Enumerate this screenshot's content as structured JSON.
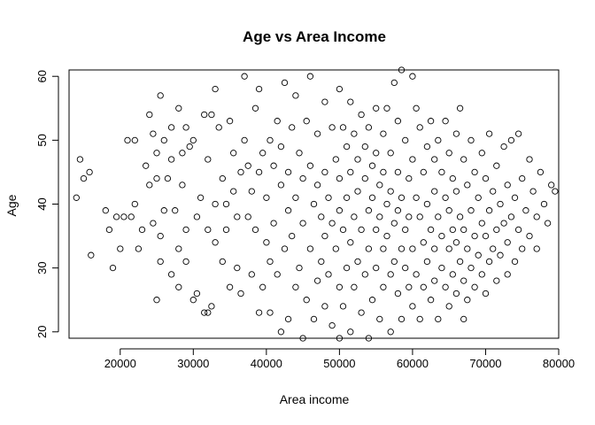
{
  "chart_data": {
    "type": "scatter",
    "title": "Age vs Area Income",
    "xlabel": "Area income",
    "ylabel": "Age",
    "xlim": [
      13000,
      80000
    ],
    "ylim": [
      19,
      61
    ],
    "x_ticks": [
      20000,
      30000,
      40000,
      50000,
      60000,
      70000,
      80000
    ],
    "x_tick_labels": [
      "20000",
      "30000",
      "40000",
      "50000",
      "60000",
      "70000",
      "80000"
    ],
    "y_ticks": [
      20,
      30,
      40,
      50,
      60
    ],
    "y_tick_labels": [
      "20",
      "30",
      "40",
      "50",
      "60"
    ],
    "grid": false,
    "marker": "open-circle",
    "colors": {
      "marker": "#000000",
      "background": "#ffffff"
    },
    "series": [
      {
        "points": [
          [
            14000,
            41
          ],
          [
            14500,
            47
          ],
          [
            15000,
            44
          ],
          [
            15800,
            45
          ],
          [
            16000,
            32
          ],
          [
            18000,
            39
          ],
          [
            18500,
            36
          ],
          [
            19000,
            30
          ],
          [
            19500,
            38
          ],
          [
            20000,
            33
          ],
          [
            20500,
            38
          ],
          [
            21000,
            50
          ],
          [
            21500,
            38
          ],
          [
            22000,
            40
          ],
          [
            22000,
            50
          ],
          [
            22500,
            33
          ],
          [
            23000,
            36
          ],
          [
            23500,
            46
          ],
          [
            24000,
            43
          ],
          [
            24000,
            54
          ],
          [
            24500,
            51
          ],
          [
            24500,
            37
          ],
          [
            25000,
            48
          ],
          [
            25000,
            44
          ],
          [
            25500,
            35
          ],
          [
            25500,
            57
          ],
          [
            25500,
            31
          ],
          [
            25000,
            25
          ],
          [
            26000,
            39
          ],
          [
            26000,
            50
          ],
          [
            26500,
            44
          ],
          [
            27000,
            52
          ],
          [
            27000,
            47
          ],
          [
            27000,
            29
          ],
          [
            27500,
            39
          ],
          [
            28000,
            55
          ],
          [
            28000,
            33
          ],
          [
            28000,
            27
          ],
          [
            28500,
            48
          ],
          [
            28500,
            43
          ],
          [
            29000,
            52
          ],
          [
            29000,
            36
          ],
          [
            29000,
            31
          ],
          [
            29500,
            49
          ],
          [
            30000,
            50
          ],
          [
            30000,
            25
          ],
          [
            30500,
            38
          ],
          [
            30500,
            26
          ],
          [
            31000,
            41
          ],
          [
            31500,
            54
          ],
          [
            31500,
            23
          ],
          [
            32000,
            47
          ],
          [
            32000,
            36
          ],
          [
            32000,
            23
          ],
          [
            32500,
            54
          ],
          [
            32500,
            24
          ],
          [
            33000,
            58
          ],
          [
            33000,
            40
          ],
          [
            33000,
            34
          ],
          [
            33500,
            52
          ],
          [
            34000,
            44
          ],
          [
            34000,
            31
          ],
          [
            34500,
            40
          ],
          [
            34500,
            36
          ],
          [
            35000,
            53
          ],
          [
            35000,
            27
          ],
          [
            35500,
            48
          ],
          [
            35500,
            42
          ],
          [
            36000,
            38
          ],
          [
            36000,
            30
          ],
          [
            36500,
            45
          ],
          [
            36500,
            26
          ],
          [
            37000,
            60
          ],
          [
            37000,
            50
          ],
          [
            37500,
            46
          ],
          [
            37500,
            38
          ],
          [
            38000,
            42
          ],
          [
            38000,
            29
          ],
          [
            38500,
            55
          ],
          [
            38500,
            36
          ],
          [
            39000,
            58
          ],
          [
            39000,
            45
          ],
          [
            39000,
            23
          ],
          [
            39500,
            48
          ],
          [
            39500,
            27
          ],
          [
            40000,
            34
          ],
          [
            40000,
            41
          ],
          [
            40500,
            50
          ],
          [
            40500,
            31
          ],
          [
            40500,
            23
          ],
          [
            41000,
            46
          ],
          [
            41000,
            37
          ],
          [
            41500,
            53
          ],
          [
            41500,
            29
          ],
          [
            42000,
            20
          ],
          [
            42000,
            43
          ],
          [
            42000,
            49
          ],
          [
            42500,
            59
          ],
          [
            42500,
            33
          ],
          [
            43000,
            39
          ],
          [
            43000,
            45
          ],
          [
            43000,
            22
          ],
          [
            43500,
            52
          ],
          [
            43500,
            35
          ],
          [
            44000,
            57
          ],
          [
            44000,
            41
          ],
          [
            44000,
            27
          ],
          [
            44500,
            48
          ],
          [
            44500,
            30
          ],
          [
            45000,
            44
          ],
          [
            45000,
            37
          ],
          [
            45000,
            19
          ],
          [
            45500,
            53
          ],
          [
            45500,
            25
          ],
          [
            46000,
            60
          ],
          [
            46000,
            46
          ],
          [
            46000,
            33
          ],
          [
            46500,
            40
          ],
          [
            46500,
            22
          ],
          [
            47000,
            51
          ],
          [
            47000,
            43
          ],
          [
            47000,
            28
          ],
          [
            47500,
            38
          ],
          [
            47500,
            31
          ],
          [
            48000,
            56
          ],
          [
            48000,
            45
          ],
          [
            48000,
            35
          ],
          [
            48000,
            24
          ],
          [
            48500,
            41
          ],
          [
            48500,
            29
          ],
          [
            49000,
            52
          ],
          [
            49000,
            37
          ],
          [
            49000,
            21
          ],
          [
            49500,
            47
          ],
          [
            49500,
            33
          ],
          [
            50000,
            58
          ],
          [
            50000,
            44
          ],
          [
            50000,
            39
          ],
          [
            50000,
            27
          ],
          [
            50000,
            19
          ],
          [
            50500,
            52
          ],
          [
            50500,
            36
          ],
          [
            50500,
            24
          ],
          [
            51000,
            49
          ],
          [
            51000,
            41
          ],
          [
            51000,
            30
          ],
          [
            51500,
            56
          ],
          [
            51500,
            45
          ],
          [
            51500,
            34
          ],
          [
            51500,
            20
          ],
          [
            52000,
            51
          ],
          [
            52000,
            38
          ],
          [
            52000,
            27
          ],
          [
            52500,
            47
          ],
          [
            52500,
            42
          ],
          [
            52500,
            31
          ],
          [
            53000,
            54
          ],
          [
            53000,
            36
          ],
          [
            53000,
            23
          ],
          [
            53500,
            49
          ],
          [
            53500,
            44
          ],
          [
            53500,
            29
          ],
          [
            54000,
            52
          ],
          [
            54000,
            39
          ],
          [
            54000,
            33
          ],
          [
            54000,
            19
          ],
          [
            54500,
            46
          ],
          [
            54500,
            41
          ],
          [
            54500,
            25
          ],
          [
            55000,
            55
          ],
          [
            55000,
            48
          ],
          [
            55000,
            36
          ],
          [
            55000,
            30
          ],
          [
            55500,
            43
          ],
          [
            55500,
            38
          ],
          [
            55500,
            22
          ],
          [
            56000,
            51
          ],
          [
            56000,
            45
          ],
          [
            56000,
            33
          ],
          [
            56000,
            27
          ],
          [
            56500,
            55
          ],
          [
            56500,
            40
          ],
          [
            56500,
            35
          ],
          [
            57000,
            48
          ],
          [
            57000,
            42
          ],
          [
            57000,
            29
          ],
          [
            57000,
            20
          ],
          [
            57500,
            59
          ],
          [
            57500,
            37
          ],
          [
            57500,
            31
          ],
          [
            58000,
            53
          ],
          [
            58000,
            45
          ],
          [
            58000,
            39
          ],
          [
            58000,
            26
          ],
          [
            58500,
            61
          ],
          [
            58500,
            41
          ],
          [
            58500,
            33
          ],
          [
            58500,
            22
          ],
          [
            59000,
            50
          ],
          [
            59000,
            36
          ],
          [
            59000,
            30
          ],
          [
            59500,
            44
          ],
          [
            59500,
            38
          ],
          [
            59500,
            27
          ],
          [
            60000,
            60
          ],
          [
            60000,
            47
          ],
          [
            60000,
            33
          ],
          [
            60000,
            24
          ],
          [
            60500,
            55
          ],
          [
            60500,
            41
          ],
          [
            60500,
            29
          ],
          [
            61000,
            52
          ],
          [
            61000,
            38
          ],
          [
            61000,
            22
          ],
          [
            61500,
            45
          ],
          [
            61500,
            34
          ],
          [
            61500,
            27
          ],
          [
            62000,
            49
          ],
          [
            62000,
            40
          ],
          [
            62000,
            31
          ],
          [
            62500,
            53
          ],
          [
            62500,
            36
          ],
          [
            62500,
            25
          ],
          [
            63000,
            47
          ],
          [
            63000,
            42
          ],
          [
            63000,
            33
          ],
          [
            63000,
            28
          ],
          [
            63500,
            50
          ],
          [
            63500,
            38
          ],
          [
            63500,
            22
          ],
          [
            64000,
            45
          ],
          [
            64000,
            35
          ],
          [
            64000,
            30
          ],
          [
            64500,
            53
          ],
          [
            64500,
            41
          ],
          [
            64500,
            27
          ],
          [
            65000,
            48
          ],
          [
            65000,
            39
          ],
          [
            65000,
            33
          ],
          [
            65000,
            24
          ],
          [
            65500,
            44
          ],
          [
            65500,
            36
          ],
          [
            65500,
            29
          ],
          [
            66000,
            51
          ],
          [
            66000,
            42
          ],
          [
            66000,
            34
          ],
          [
            66000,
            26
          ],
          [
            66500,
            55
          ],
          [
            66500,
            38
          ],
          [
            66500,
            31
          ],
          [
            67000,
            47
          ],
          [
            67000,
            36
          ],
          [
            67000,
            28
          ],
          [
            67000,
            22
          ],
          [
            67500,
            43
          ],
          [
            67500,
            33
          ],
          [
            67500,
            25
          ],
          [
            68000,
            50
          ],
          [
            68000,
            39
          ],
          [
            68000,
            30
          ],
          [
            68500,
            45
          ],
          [
            68500,
            35
          ],
          [
            68500,
            27
          ],
          [
            69000,
            41
          ],
          [
            69000,
            32
          ],
          [
            69500,
            48
          ],
          [
            69500,
            37
          ],
          [
            69500,
            29
          ],
          [
            70000,
            44
          ],
          [
            70000,
            35
          ],
          [
            70000,
            26
          ],
          [
            70500,
            51
          ],
          [
            70500,
            39
          ],
          [
            70500,
            31
          ],
          [
            71000,
            42
          ],
          [
            71000,
            33
          ],
          [
            71500,
            46
          ],
          [
            71500,
            36
          ],
          [
            71500,
            28
          ],
          [
            72000,
            40
          ],
          [
            72000,
            32
          ],
          [
            72500,
            49
          ],
          [
            72500,
            37
          ],
          [
            73000,
            43
          ],
          [
            73000,
            34
          ],
          [
            73000,
            29
          ],
          [
            73500,
            50
          ],
          [
            73500,
            38
          ],
          [
            74000,
            41
          ],
          [
            74000,
            31
          ],
          [
            74500,
            51
          ],
          [
            74500,
            36
          ],
          [
            75000,
            44
          ],
          [
            75000,
            33
          ],
          [
            75500,
            39
          ],
          [
            76000,
            47
          ],
          [
            76000,
            35
          ],
          [
            76500,
            42
          ],
          [
            77000,
            38
          ],
          [
            77000,
            33
          ],
          [
            77500,
            45
          ],
          [
            78000,
            40
          ],
          [
            78500,
            37
          ],
          [
            79000,
            43
          ],
          [
            79500,
            42
          ]
        ]
      }
    ]
  }
}
